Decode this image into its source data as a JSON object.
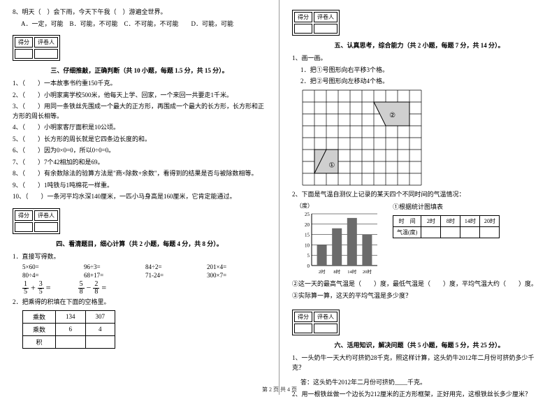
{
  "left": {
    "q8": "8、明天（　）会下雨，今天下午我（　）游遍全世界。",
    "q8opts": "A．一定，可能　B．可能，不可能　C．不可能，不可能　　D．可能，可能",
    "score_head": [
      "得分",
      "评卷人"
    ],
    "sec3_title": "三、仔细推敲，正确判断（共 10 小题，每题 1.5 分，共 15 分）。",
    "j": [
      "1、（　　）一本故事书约重150千克。",
      "2、（　　）小明家离学校500米，他每天上学、回家，一个来回一共要走1千米。",
      "3、（　　）用同一条铁丝先围成一个最大的正方形，再围成一个最大的长方形，长方形和正方形的周长相等。",
      "4、（　　）小明家客厅面积是10公顷。",
      "5、（　　）长方形的周长就是它四条边长度的和。",
      "6、（　　）因为0×0=0，所以0÷0=0。",
      "7、（　　）7个42相加的和是69。",
      "8、（　　）有余数除法的验算方法是\"商×除数+余数\"，看得到的结果是否与被除数相等。",
      "9、（　　）1吨铁与1吨棉花一样重。",
      "10、（　　）一条河平均水深140厘米，一匹小马身高是160厘米，它肯定能通过。"
    ],
    "sec4_title": "四、看清题目，细心计算（共 2 小题，每题 4 分，共 8 分）。",
    "calc_label": "1．直接写得数。",
    "calc_rows": [
      [
        "5×60=",
        "96÷3=",
        "84÷2=",
        "201×4="
      ],
      [
        "80÷4=",
        "68+17=",
        "71-24=",
        "300×7="
      ]
    ],
    "frac1": {
      "a_n": "1",
      "a_d": "5",
      "b_n": "3",
      "b_d": "5"
    },
    "frac2": {
      "a_n": "5",
      "a_d": "8",
      "b_n": "2",
      "b_d": "8"
    },
    "table_label": "2．把乘得的积填在下面的空格里。",
    "table": {
      "rows": [
        [
          "乘数",
          "134",
          "307"
        ],
        [
          "乘数",
          "6",
          "4"
        ],
        [
          "积",
          "",
          ""
        ]
      ]
    }
  },
  "right": {
    "score_head": [
      "得分",
      "评卷人"
    ],
    "sec5_title": "五、认真思考，综合能力（共 2 小题，每题 7 分，共 14 分）。",
    "q1": "1、画一画。",
    "q1a": "1．把①号图形向右平移3个格。",
    "q1b": "2．把②号图形向左移动4个格。",
    "grid": {
      "cols": 10,
      "rows": 8,
      "cell": 17,
      "shape1_label": "①",
      "shape2_label": "②"
    },
    "q2": "2、下面是气温自测仪上记录的某天四个不同时间的气温情况：",
    "chart": {
      "ylabel": "（度）",
      "yticks": [
        "25",
        "20",
        "15",
        "10",
        "5",
        "0"
      ],
      "xticks": [
        "2时",
        "8时",
        "14时",
        "20时"
      ],
      "values": [
        10,
        18,
        23,
        15
      ],
      "ymax": 25,
      "bar_color": "#6b6b6b",
      "grid_color": "#000000",
      "bg": "#ffffff"
    },
    "chart_table_title": "①根据统计图填表",
    "chart_table": {
      "head": [
        "时　间",
        "2时",
        "8时",
        "14时",
        "20时"
      ],
      "row2": [
        "气温(度)",
        "",
        "",
        "",
        ""
      ]
    },
    "q2b": "②这一天的最高气温是（　　）度，最低气温是（　　）度，平均气温大约（　　）度。",
    "q2c": "③实际算一算，这天的平均气温是多少度？",
    "sec6_title": "六、活用知识，解决问题（共 5 小题，每题 5 分，共 25 分）。",
    "p1": "1、一头奶牛一天大约可挤奶28千克，照这样计算，这头奶牛2012年二月份可挤奶多少千克？",
    "p1a": "答：这头奶牛2012年二月份可挤奶____千克。",
    "p2": "2、用一根铁丝做一个边长为212厘米的正方形框架，正好用完，这根铁丝长多少厘米？"
  },
  "footer": "第 2 页 共 4 页"
}
